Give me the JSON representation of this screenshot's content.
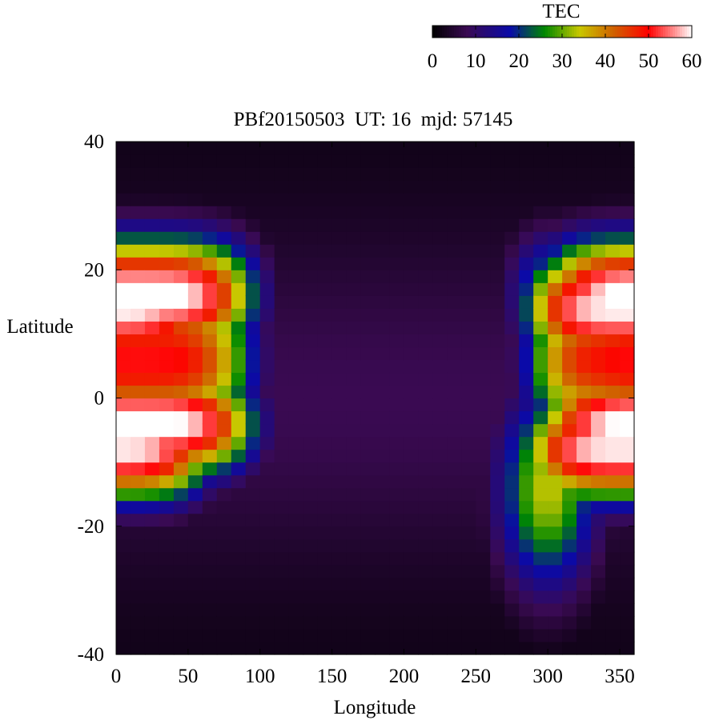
{
  "chart_data": {
    "type": "heatmap",
    "title": "PBf20150503  UT: 16  mjd: 57145",
    "xlabel": "Longitude",
    "ylabel": "Latitude",
    "xlim": [
      0,
      360
    ],
    "ylim": [
      -40,
      40
    ],
    "x_ticks": [
      "0",
      "50",
      "100",
      "150",
      "200",
      "250",
      "300",
      "350"
    ],
    "y_ticks": [
      "-40",
      "-20",
      "0",
      "20",
      "40"
    ],
    "grid": false,
    "cell_size_deg": {
      "lon": 10,
      "lat": 2
    },
    "colorbar": {
      "label": "TEC",
      "range": [
        0,
        60
      ],
      "ticks": [
        "0",
        "10",
        "20",
        "30",
        "40",
        "50",
        "60"
      ],
      "placement": "top-right",
      "stops": [
        {
          "v": 0,
          "c": "#000000"
        },
        {
          "v": 8,
          "c": "#3a0a52"
        },
        {
          "v": 18,
          "c": "#0a0aa8"
        },
        {
          "v": 26,
          "c": "#008800"
        },
        {
          "v": 34,
          "c": "#c8c800"
        },
        {
          "v": 42,
          "c": "#d06000"
        },
        {
          "v": 50,
          "c": "#ff0000"
        },
        {
          "v": 56,
          "c": "#ff9090"
        },
        {
          "v": 60,
          "c": "#ffffff"
        }
      ]
    },
    "field_model": {
      "description": "Estimated TEC values read off the map; equatorial anomaly crests near 15N and 5S, peak ~60 near 15-20E and 350E, minimum ~0 at 160-230E and high latitudes",
      "evening_band": {
        "center_lon": 15,
        "half_width_lon": 80,
        "north_crest_lat": 16,
        "south_crest_lat": -4,
        "peak": 62
      },
      "afternoon_band": {
        "center_lon": 355,
        "half_width_lon": 70,
        "north_crest_lat": 14,
        "south_crest_lat": -8,
        "peak": 60
      },
      "night_floor": 2
    }
  }
}
